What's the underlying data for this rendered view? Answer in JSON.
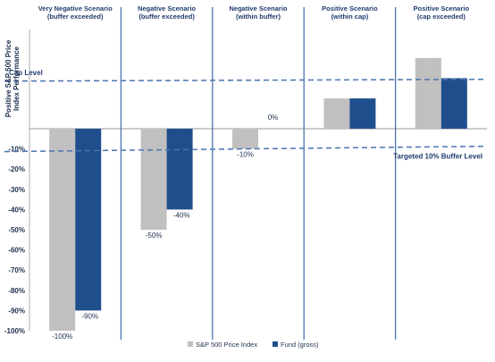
{
  "chart_data": {
    "type": "bar",
    "categories": [
      [
        "Very Negative Scenario",
        "(buffer exceeded)"
      ],
      [
        "Negative Scenario",
        "(buffer exceeded)"
      ],
      [
        "Negative Scenario",
        "(within buffer)"
      ],
      [
        "Positive Scenario",
        "(within cap)"
      ],
      [
        "Positive Scenario",
        "(cap exceeded)"
      ]
    ],
    "series": [
      {
        "name": "S&P 500 Price Index",
        "values": [
          -100,
          -50,
          -10,
          15,
          35
        ],
        "labels": [
          "-100%",
          "-50%",
          "-10%",
          "",
          ""
        ]
      },
      {
        "name": "Fund (gross)",
        "values": [
          -90,
          -40,
          0,
          15,
          25
        ],
        "labels": [
          "-90%",
          "-40%",
          "0%",
          "",
          ""
        ]
      }
    ],
    "ylabel": [
      "Positive S&P 500 Price",
      "Index Performance"
    ],
    "y_ticks": [
      {
        "v": -10,
        "t": "-10%"
      },
      {
        "v": -20,
        "t": "-20%"
      },
      {
        "v": -30,
        "t": "-30%"
      },
      {
        "v": -40,
        "t": "-40%"
      },
      {
        "v": -50,
        "t": "-50%"
      },
      {
        "v": -60,
        "t": "-60%"
      },
      {
        "v": -70,
        "t": "-70%"
      },
      {
        "v": -80,
        "t": "-80%"
      },
      {
        "v": -90,
        "t": "-90%"
      },
      {
        "v": -100,
        "t": "-100%"
      }
    ],
    "ylim": [
      -100,
      49
    ],
    "cap_level": 24,
    "cap_label": "Cap Level",
    "buffer_level": -10,
    "buffer_label": "Targeted 10% Buffer Level",
    "legend_position": "bottom-center",
    "colors": {
      "sp500": "#c0c0c0",
      "fund": "#1f4e8c",
      "divider": "#4a74b0",
      "dash": "#4a74b0"
    }
  }
}
